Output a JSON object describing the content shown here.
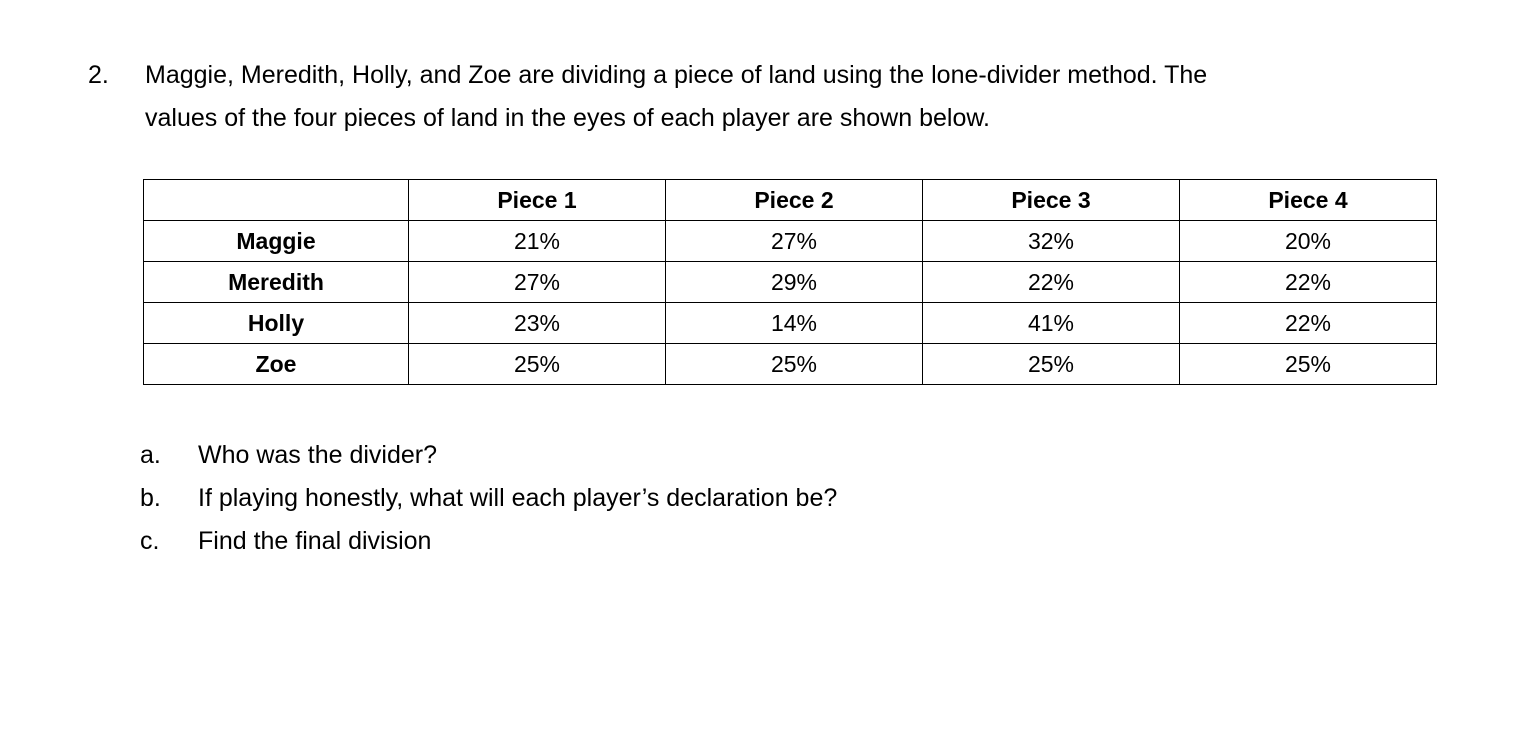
{
  "question": {
    "number": "2.",
    "lines": [
      "Maggie, Meredith, Holly, and Zoe are dividing a piece of land using the lone-divider method. The",
      "values of the four pieces of land in the eyes of each player are shown below."
    ]
  },
  "table": {
    "headers": [
      "",
      "Piece 1",
      "Piece 2",
      "Piece 3",
      "Piece 4"
    ],
    "rows": [
      {
        "name": "Maggie",
        "values": [
          "21%",
          "27%",
          "32%",
          "20%"
        ]
      },
      {
        "name": "Meredith",
        "values": [
          "27%",
          "29%",
          "22%",
          "22%"
        ]
      },
      {
        "name": "Holly",
        "values": [
          "23%",
          "14%",
          "41%",
          "22%"
        ]
      },
      {
        "name": "Zoe",
        "values": [
          "25%",
          "25%",
          "25%",
          "25%"
        ]
      }
    ]
  },
  "subquestions": [
    {
      "label": "a.",
      "text": "Who was the divider?"
    },
    {
      "label": "b.",
      "text": "If playing honestly, what will each player’s declaration be?"
    },
    {
      "label": "c.",
      "text": "Find the final division"
    }
  ]
}
